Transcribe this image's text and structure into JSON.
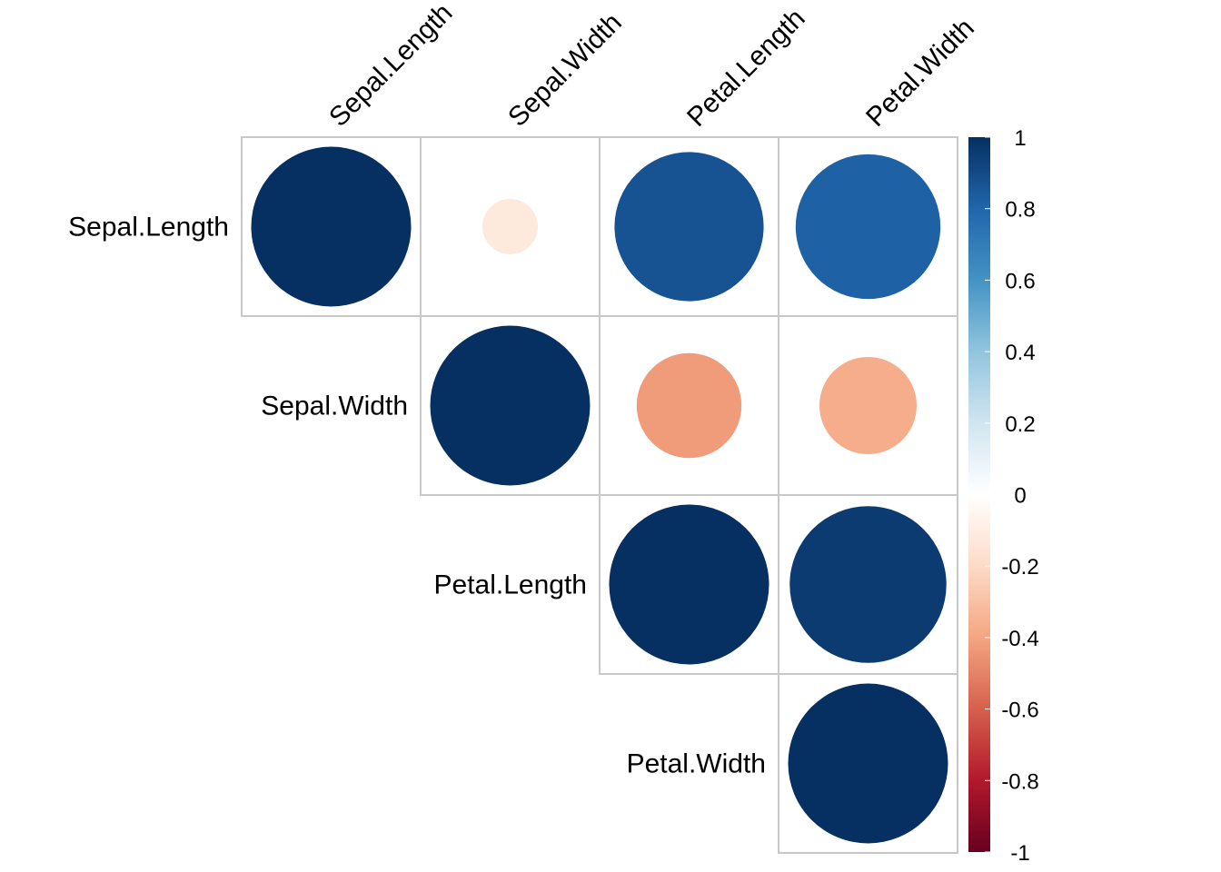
{
  "chart_data": {
    "type": "heatmap",
    "subtype": "corrplot-circle-upper",
    "variables": [
      "Sepal.Length",
      "Sepal.Width",
      "Petal.Length",
      "Petal.Width"
    ],
    "matrix": [
      [
        1.0,
        -0.12,
        0.87,
        0.82
      ],
      [
        -0.12,
        1.0,
        -0.43,
        -0.37
      ],
      [
        0.87,
        -0.43,
        1.0,
        0.96
      ],
      [
        0.82,
        -0.37,
        0.96,
        1.0
      ]
    ],
    "shown": "upper-with-diagonal",
    "colorbar": {
      "range": [
        -1,
        1
      ],
      "ticks": [
        1,
        0.8,
        0.6,
        0.4,
        0.2,
        0,
        -0.2,
        -0.4,
        -0.6,
        -0.8,
        -1
      ],
      "tick_labels": [
        "1",
        "0.8",
        "0.6",
        "0.4",
        "0.2",
        "0",
        "-0.2",
        "-0.4",
        "-0.6",
        "-0.8",
        "-1"
      ],
      "colors": [
        "#67001f",
        "#b2182b",
        "#d6604d",
        "#f4a582",
        "#fddbc7",
        "#ffffff",
        "#d1e5f0",
        "#92c5de",
        "#4393c3",
        "#2166ac",
        "#053061"
      ]
    },
    "grid_color": "#c8c8c8"
  }
}
